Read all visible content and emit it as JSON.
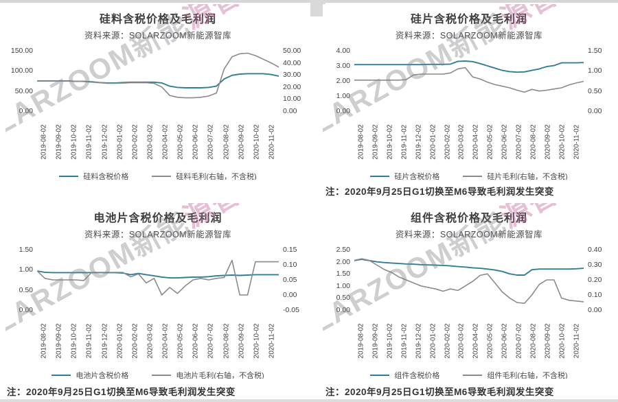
{
  "watermark": {
    "gray_part": "SOLARZOOM新能",
    "pink_part": "源智库"
  },
  "colors": {
    "price_line": "#2f7e96",
    "margin_line": "#8a8a8a",
    "watermark_gray": "#7d7d85",
    "watermark_pink": "#c16998"
  },
  "chart_data": [
    {
      "type": "line",
      "title": "硅料含税价格及毛利润",
      "subtitle": "资料来源：SOLARZOOM新能源智库",
      "note": "",
      "x_labels": [
        "2019-08-02",
        "2019-09-02",
        "2019-10-02",
        "2019-11-02",
        "2019-12-02",
        "2020-01-02",
        "2020-02-02",
        "2020-03-02",
        "2020-04-02",
        "2020-05-02",
        "2020-06-02",
        "2020-07-02",
        "2020-08-02",
        "2020-09-02",
        "2020-10-02",
        "2020-11-02"
      ],
      "left_axis": {
        "min": 0,
        "max": 150,
        "ticks": [
          "150.00",
          "100.00",
          "50.00",
          "0.00"
        ]
      },
      "right_axis": {
        "min": 0,
        "max": 50,
        "ticks": [
          "50.00",
          "40.00",
          "30.00",
          "20.00",
          "10.00",
          "0.00"
        ]
      },
      "legend_position": "bottom",
      "grid": false,
      "series": [
        {
          "name": "硅料含税价格",
          "axis": "left",
          "color": "#2f7e96",
          "values": [
            75,
            75,
            75,
            75,
            75,
            74,
            74,
            73,
            71,
            70,
            70,
            71,
            72,
            72,
            72,
            72,
            70,
            62,
            59,
            58,
            58,
            58,
            59,
            62,
            80,
            89,
            92,
            93,
            93,
            93,
            91,
            87
          ]
        },
        {
          "name": "硅料毛利(右轴，不含税)",
          "axis": "right",
          "color": "#8a8a8a",
          "values": [
            25,
            25,
            25,
            25,
            25,
            24.8,
            24.5,
            24,
            23.5,
            23,
            23,
            23.2,
            23.5,
            23.5,
            23.5,
            23,
            20,
            13,
            11.5,
            11,
            11,
            11.5,
            12.5,
            15,
            35,
            45,
            47.5,
            48,
            46,
            43,
            40,
            36.5
          ]
        }
      ]
    },
    {
      "type": "line",
      "title": "硅片含税价格及毛利润",
      "subtitle": "资料来源：SOLARZOOM新能源智库",
      "note": "注：2020年9月25日G1切换至M6导致毛利润发生突变",
      "x_labels": [
        "2019-08-02",
        "2019-09-02",
        "2019-10-02",
        "2019-11-02",
        "2019-12-02",
        "2020-01-02",
        "2020-02-02",
        "2020-03-02",
        "2020-04-02",
        "2020-05-02",
        "2020-06-02",
        "2020-07-02",
        "2020-08-02",
        "2020-09-02",
        "2020-10-02",
        "2020-11-02"
      ],
      "left_axis": {
        "min": 0,
        "max": 4,
        "ticks": [
          "4.00",
          "3.00",
          "2.00",
          "1.00",
          "0.00"
        ]
      },
      "right_axis": {
        "min": 0,
        "max": 1.5,
        "ticks": [
          "1.50",
          "1.00",
          "0.50",
          "0.00"
        ]
      },
      "legend_position": "bottom",
      "grid": false,
      "series": [
        {
          "name": "硅片含税价格",
          "axis": "left",
          "color": "#2f7e96",
          "values": [
            3.08,
            3.08,
            3.08,
            3.08,
            3.08,
            3.08,
            3.08,
            3.08,
            3.08,
            3.08,
            3.1,
            3.1,
            3.1,
            3.12,
            3.3,
            3.32,
            3.28,
            3.15,
            3.0,
            2.85,
            2.7,
            2.62,
            2.58,
            2.6,
            2.7,
            2.8,
            2.95,
            3.02,
            3.2,
            3.2,
            3.2,
            3.22
          ]
        },
        {
          "name": "硅片毛利(右轴，不含税)",
          "axis": "right",
          "color": "#8a8a8a",
          "values": [
            0.77,
            0.77,
            0.77,
            0.77,
            0.77,
            0.77,
            0.77,
            0.78,
            0.9,
            0.92,
            0.92,
            0.92,
            0.92,
            0.95,
            1.05,
            1.08,
            0.85,
            0.8,
            0.72,
            0.66,
            0.62,
            0.58,
            0.52,
            0.47,
            0.54,
            0.5,
            0.52,
            0.55,
            0.58,
            0.65,
            0.7,
            0.74
          ]
        }
      ]
    },
    {
      "type": "line",
      "title": "电池片含税价格及毛利润",
      "subtitle": "资料来源：SOLARZOOM新能源智库",
      "note": "注：2020年9月25日G1切换至M6导致毛利润发生突变",
      "x_labels": [
        "2019-08-02",
        "2019-09-02",
        "2019-10-02",
        "2019-11-02",
        "2019-12-02",
        "2020-01-02",
        "2020-02-02",
        "2020-03-02",
        "2020-04-02",
        "2020-05-02",
        "2020-06-02",
        "2020-07-02",
        "2020-08-02",
        "2020-09-02",
        "2020-10-02",
        "2020-11-02"
      ],
      "left_axis": {
        "min": 0,
        "max": 1.5,
        "ticks": [
          "1.50",
          "1.00",
          "0.50",
          "0.00"
        ]
      },
      "right_axis": {
        "min": -0.05,
        "max": 0.15,
        "ticks": [
          "0.15",
          "0.10",
          "0.05",
          "0.00",
          "-0.05"
        ]
      },
      "legend_position": "bottom",
      "grid": false,
      "series": [
        {
          "name": "电池片含税价格",
          "axis": "left",
          "color": "#2f7e96",
          "values": [
            0.97,
            0.94,
            0.93,
            0.93,
            0.93,
            0.93,
            0.93,
            0.93,
            0.93,
            0.93,
            0.93,
            0.92,
            0.88,
            0.91,
            0.88,
            0.85,
            0.82,
            0.8,
            0.8,
            0.81,
            0.82,
            0.82,
            0.83,
            0.85,
            0.86,
            0.87,
            0.86,
            0.87,
            0.88,
            0.88,
            0.88,
            0.88
          ]
        },
        {
          "name": "电池片毛利(右轴，不含税)",
          "axis": "right",
          "color": "#8a8a8a",
          "values": [
            0.08,
            0.055,
            0.05,
            0.05,
            0.05,
            0.05,
            0.048,
            0.075,
            0.075,
            0.075,
            0.075,
            0.075,
            0.06,
            0.07,
            0.04,
            0.055,
            0.0,
            0.025,
            0.005,
            0.03,
            0.05,
            0.055,
            0.05,
            0.055,
            0.058,
            0.115,
            0.0,
            0.0,
            0.11,
            0.11,
            0.11,
            0.11
          ]
        }
      ]
    },
    {
      "type": "line",
      "title": "组件含税价格及毛利润",
      "subtitle": "资料来源：SOLARZOOM新能源智库",
      "note": "注：2020年9月25日G1切换至M6导致毛利润发生突变",
      "x_labels": [
        "2019-08-02",
        "2019-09-02",
        "2019-10-02",
        "2019-11-02",
        "2019-12-02",
        "2020-01-02",
        "2020-02-02",
        "2020-03-02",
        "2020-04-02",
        "2020-05-02",
        "2020-06-02",
        "2020-07-02",
        "2020-08-02",
        "2020-09-02",
        "2020-10-02",
        "2020-11-02"
      ],
      "left_axis": {
        "min": 0,
        "max": 2.5,
        "ticks": [
          "2.50",
          "2.00",
          "1.50",
          "1.00",
          "0.50",
          "0.00"
        ]
      },
      "right_axis": {
        "min": 0,
        "max": 0.4,
        "ticks": [
          "0.40",
          "0.30",
          "0.20",
          "0.10",
          "0.00"
        ]
      },
      "legend_position": "bottom",
      "grid": false,
      "series": [
        {
          "name": "组件含税价格",
          "axis": "left",
          "color": "#2f7e96",
          "values": [
            2.05,
            2.1,
            2.05,
            2.0,
            1.97,
            1.95,
            1.93,
            1.91,
            1.9,
            1.88,
            1.87,
            1.86,
            1.85,
            1.83,
            1.8,
            1.78,
            1.75,
            1.73,
            1.7,
            1.66,
            1.6,
            1.5,
            1.45,
            1.45,
            1.67,
            1.7,
            1.7,
            1.7,
            1.7,
            1.7,
            1.71,
            1.73
          ]
        },
        {
          "name": "组件毛利(右轴，不含税)",
          "axis": "right",
          "color": "#8a8a8a",
          "values": [
            0.33,
            0.34,
            0.33,
            0.3,
            0.27,
            0.25,
            0.22,
            0.2,
            0.18,
            0.16,
            0.15,
            0.14,
            0.125,
            0.14,
            0.13,
            0.16,
            0.19,
            0.23,
            0.24,
            0.18,
            0.12,
            0.08,
            0.05,
            0.045,
            0.1,
            0.17,
            0.2,
            0.2,
            0.08,
            0.065,
            0.06,
            0.055
          ]
        }
      ]
    }
  ]
}
